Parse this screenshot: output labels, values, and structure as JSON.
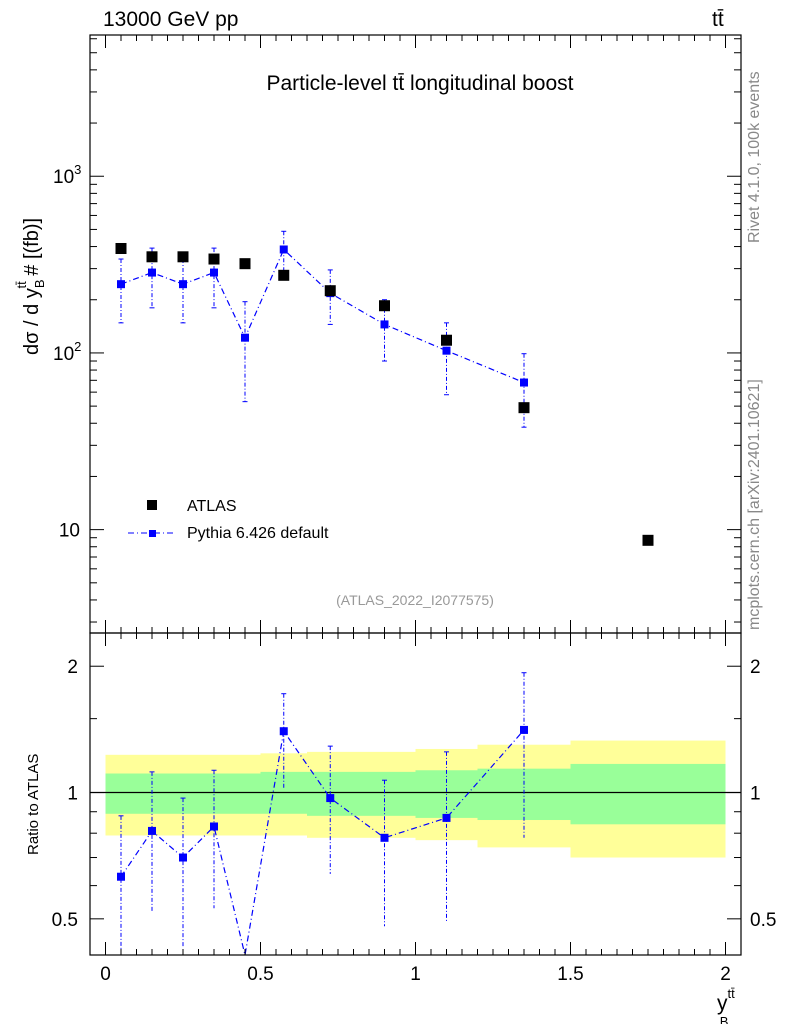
{
  "header": {
    "energy": "13000 GeV pp",
    "process": "tt̄"
  },
  "side": {
    "rivet": "Rivet 4.1.0,  100k events",
    "mcplots": "mcplots.cern.ch [arXiv:2401.10621]"
  },
  "colors": {
    "mc": "#0000ff",
    "data": "#000000",
    "band_stat": "#99ff99",
    "band_total": "#ffff99",
    "watermark": "#999999"
  },
  "chart_data": {
    "type": "scatter",
    "title": "Particle-level tt̄ longitudinal boost",
    "watermark": "(ATLAS_2022_I2077575)",
    "ylabel_parts": {
      "pre": "dσ / d y",
      "sup": "tt̄",
      "sub": "B",
      "post": " # [(fb)]"
    },
    "xlabel_parts": {
      "pre": "y",
      "sup": "tt̄",
      "sub": "B"
    },
    "ratio_ylabel": "Ratio to ATLAS",
    "xlim": [
      -0.05,
      2.05
    ],
    "ylim": [
      2.6,
      6300
    ],
    "yscale": "log",
    "ratio_ylim": [
      0.41,
      2.4
    ],
    "ratio_yscale": "log",
    "xticks": [
      0,
      0.5,
      1,
      1.5,
      2
    ],
    "xtick_labels": [
      "0",
      "0.5",
      "1",
      "1.5",
      "2"
    ],
    "yticks_main": [
      10,
      100,
      1000
    ],
    "yticks_main_labels": {
      "base": "10",
      "sup2": "2",
      "sup3": "3"
    },
    "yticks_ratio": [
      0.5,
      1,
      2
    ],
    "yticks_ratio_labels": [
      "0.5",
      "1",
      "2"
    ],
    "legend": [
      "ATLAS",
      "Pythia 6.426 default"
    ],
    "series": [
      {
        "name": "ATLAS",
        "x": [
          0.05,
          0.15,
          0.25,
          0.35,
          0.45,
          0.575,
          0.725,
          0.9,
          1.1,
          1.35,
          1.75
        ],
        "values": [
          390,
          350,
          350,
          340,
          320,
          275,
          225,
          185,
          118,
          49,
          8.7
        ]
      },
      {
        "name": "Pythia 6.426 default",
        "x": [
          0.05,
          0.15,
          0.25,
          0.35,
          0.45,
          0.575,
          0.725,
          0.9,
          1.1,
          1.35
        ],
        "values": [
          245,
          285,
          245,
          285,
          122,
          385,
          218,
          145,
          103,
          68
        ],
        "err_low": [
          148,
          180,
          148,
          180,
          53,
          280,
          145,
          90,
          58,
          38
        ],
        "err_high": [
          340,
          392,
          340,
          392,
          195,
          488,
          295,
          200,
          148,
          99
        ]
      }
    ],
    "ratio": {
      "x": [
        0.05,
        0.15,
        0.25,
        0.35,
        0.45,
        0.575,
        0.725,
        0.9,
        1.1,
        1.35
      ],
      "values": [
        0.63,
        0.81,
        0.7,
        0.83,
        0.38,
        1.4,
        0.97,
        0.78,
        0.87,
        1.41
      ],
      "err_low": [
        0.38,
        0.52,
        0.43,
        0.53,
        0.38,
        1.02,
        0.64,
        0.48,
        0.49,
        0.78
      ],
      "err_high": [
        0.88,
        1.12,
        0.97,
        1.13,
        0.4,
        1.72,
        1.29,
        1.07,
        1.25,
        1.93
      ]
    },
    "bands": {
      "edges": [
        0,
        0.1,
        0.2,
        0.3,
        0.4,
        0.5,
        0.65,
        0.8,
        1.0,
        1.2,
        1.5,
        2.0
      ],
      "stat_low": [
        0.89,
        0.89,
        0.89,
        0.89,
        0.89,
        0.89,
        0.88,
        0.88,
        0.87,
        0.86,
        0.84
      ],
      "stat_high": [
        1.11,
        1.11,
        1.11,
        1.11,
        1.11,
        1.12,
        1.12,
        1.12,
        1.13,
        1.14,
        1.17
      ],
      "tot_low": [
        0.79,
        0.79,
        0.79,
        0.79,
        0.79,
        0.79,
        0.78,
        0.78,
        0.77,
        0.74,
        0.7
      ],
      "tot_high": [
        1.23,
        1.23,
        1.23,
        1.23,
        1.23,
        1.24,
        1.25,
        1.25,
        1.27,
        1.3,
        1.33
      ]
    }
  }
}
